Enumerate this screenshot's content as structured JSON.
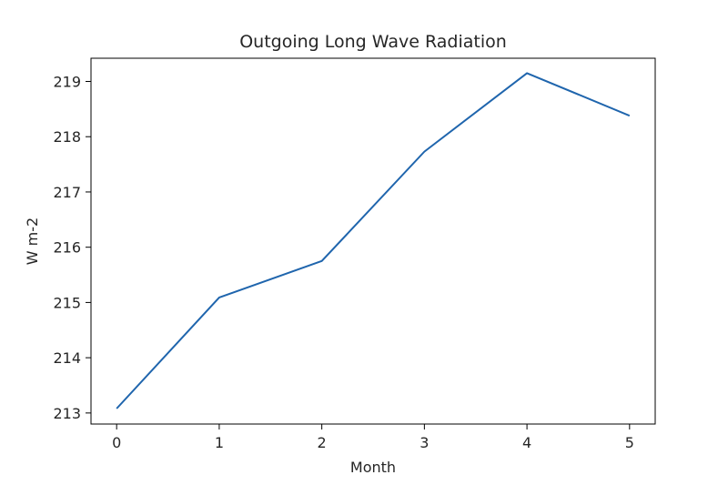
{
  "chart_data": {
    "type": "line",
    "title": "Outgoing Long Wave Radiation",
    "xlabel": "Month",
    "ylabel": "W m-2",
    "x": [
      0,
      1,
      2,
      3,
      4,
      5
    ],
    "series": [
      {
        "values": [
          213.08,
          215.09,
          215.75,
          217.73,
          219.15,
          218.38
        ],
        "color": "#1f65ad"
      }
    ],
    "xlim": [
      -0.25,
      5.25
    ],
    "ylim": [
      212.8,
      219.42
    ],
    "xticks": [
      "0",
      "1",
      "2",
      "3",
      "4",
      "5"
    ],
    "yticks": [
      "213",
      "214",
      "215",
      "216",
      "217",
      "218",
      "219"
    ],
    "grid": false,
    "legend": "none"
  }
}
